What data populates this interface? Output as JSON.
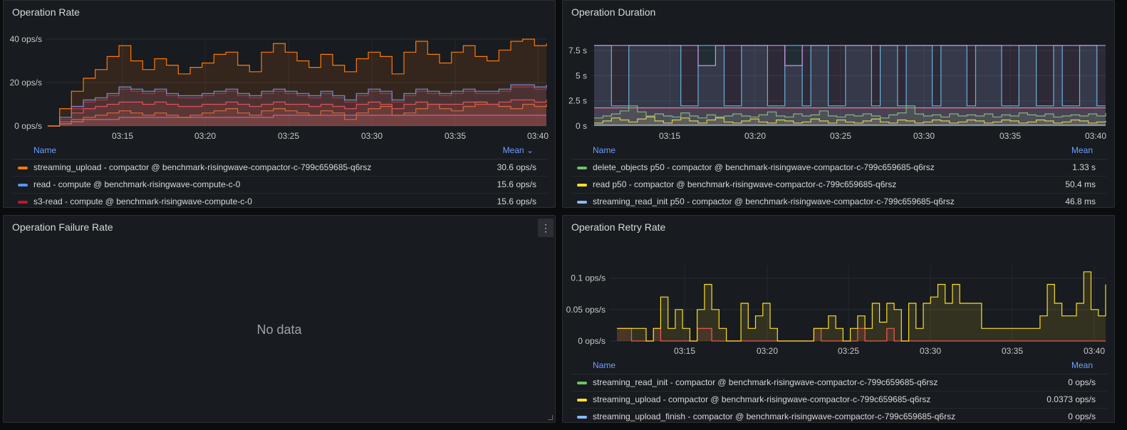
{
  "panels": {
    "rate": {
      "title": "Operation Rate",
      "legend_name_header": "Name",
      "legend_mean_header": "Mean",
      "legend_sort_icon": "chevron-down-icon",
      "legend": [
        {
          "label": "streaming_upload - compactor @ benchmark-risingwave-compactor-c-799c659685-q6rsz",
          "value": "30.6 ops/s",
          "color": "#ff780a"
        },
        {
          "label": "read - compute @ benchmark-risingwave-compute-c-0",
          "value": "15.6 ops/s",
          "color": "#5794f2"
        },
        {
          "label": "s3-read - compute @ benchmark-risingwave-compute-c-0",
          "value": "15.6 ops/s",
          "color": "#c4162a"
        }
      ]
    },
    "duration": {
      "title": "Operation Duration",
      "legend_name_header": "Name",
      "legend_mean_header": "Mean",
      "legend": [
        {
          "label": "delete_objects p50 - compactor @ benchmark-risingwave-compactor-c-799c659685-q6rsz",
          "value": "1.33 s",
          "color": "#73bf69"
        },
        {
          "label": "read p50 - compactor @ benchmark-risingwave-compactor-c-799c659685-q6rsz",
          "value": "50.4 ms",
          "color": "#fade2a"
        },
        {
          "label": "streaming_read_init p50 - compactor @ benchmark-risingwave-compactor-c-799c659685-q6rsz",
          "value": "46.8 ms",
          "color": "#8ab8ff"
        }
      ]
    },
    "failure": {
      "title": "Operation Failure Rate",
      "no_data": "No data",
      "menu_icon": "⋮"
    },
    "retry": {
      "title": "Operation Retry Rate",
      "legend_name_header": "Name",
      "legend_mean_header": "Mean",
      "legend": [
        {
          "label": "streaming_read_init - compactor @ benchmark-risingwave-compactor-c-799c659685-q6rsz",
          "value": "0 ops/s",
          "color": "#73bf69"
        },
        {
          "label": "streaming_upload - compactor @ benchmark-risingwave-compactor-c-799c659685-q6rsz",
          "value": "0.0373 ops/s",
          "color": "#fade2a"
        },
        {
          "label": "streaming_upload_finish - compactor @ benchmark-risingwave-compactor-c-799c659685-q6rsz",
          "value": "0 ops/s",
          "color": "#8ab8ff"
        }
      ]
    }
  },
  "chart_data": [
    {
      "type": "area",
      "title": "Operation Rate",
      "x_ticks": [
        "03:15",
        "03:20",
        "03:25",
        "03:30",
        "03:35",
        "03:40"
      ],
      "y_ticks": [
        "0 ops/s",
        "20 ops/s",
        "40 ops/s"
      ],
      "ylim": [
        0,
        40
      ],
      "series": [
        {
          "name": "streaming_upload - compactor @ benchmark-risingwave-compactor-c-799c659685-q6rsz",
          "color": "#ff780a",
          "values": [
            0,
            8,
            16,
            22,
            26,
            32,
            37,
            30,
            26,
            31,
            28,
            24,
            27,
            29,
            33,
            34,
            28,
            25,
            34,
            38,
            34,
            30,
            27,
            33,
            28,
            25,
            31,
            34,
            32,
            24,
            34,
            39,
            33,
            29,
            34,
            37,
            32,
            30,
            35,
            39,
            40,
            37,
            38
          ]
        },
        {
          "name": "read - compute @ benchmark-risingwave-compute-c-0",
          "color": "#5794f2",
          "values": [
            0,
            4,
            9,
            12,
            13,
            15,
            18,
            17,
            16,
            17,
            15,
            14,
            14,
            15,
            16,
            17,
            15,
            14,
            16,
            17,
            16,
            15,
            14,
            16,
            14,
            12,
            15,
            17,
            16,
            12,
            15,
            17,
            16,
            15,
            16,
            17,
            16,
            16,
            17,
            19,
            19,
            18,
            19
          ]
        },
        {
          "name": "s3-read - compute @ benchmark-risingwave-compute-c-0",
          "color": "#c4162a",
          "values": [
            0,
            3,
            8,
            11,
            12,
            14,
            17,
            16,
            15,
            16,
            14,
            13,
            13,
            14,
            15,
            16,
            14,
            13,
            15,
            16,
            15,
            14,
            13,
            15,
            13,
            11,
            14,
            16,
            15,
            11,
            14,
            16,
            15,
            14,
            15,
            16,
            15,
            15,
            16,
            18,
            18,
            17,
            18
          ]
        },
        {
          "name": "",
          "color": "#f2495c",
          "values": [
            0,
            2,
            6,
            8,
            9,
            10,
            11,
            11,
            10,
            11,
            10,
            9,
            9,
            10,
            10,
            11,
            10,
            9,
            10,
            11,
            10,
            10,
            9,
            10,
            9,
            8,
            10,
            11,
            10,
            8,
            10,
            11,
            10,
            10,
            10,
            11,
            10,
            10,
            11,
            12,
            12,
            11,
            12
          ]
        },
        {
          "name": "",
          "color": "#e0752d",
          "values": [
            0,
            1,
            3,
            4,
            5,
            6,
            7,
            6,
            5,
            6,
            5,
            4,
            5,
            6,
            7,
            8,
            6,
            5,
            7,
            8,
            7,
            6,
            5,
            7,
            6,
            3,
            6,
            8,
            9,
            5,
            6,
            8,
            10,
            8,
            7,
            9,
            11,
            10,
            9,
            8,
            10,
            9,
            10
          ]
        },
        {
          "name": "",
          "color": "#b877d9",
          "values": [
            0,
            1,
            2,
            3,
            3,
            3,
            4,
            4,
            4,
            4,
            4,
            4,
            4,
            4,
            4,
            4,
            4,
            4,
            4,
            5,
            5,
            5,
            5,
            5,
            5,
            5,
            5,
            5,
            5,
            5,
            5,
            5,
            5,
            5,
            5,
            5,
            5,
            5,
            5,
            5,
            5,
            5,
            5
          ]
        }
      ]
    },
    {
      "type": "line",
      "title": "Operation Duration",
      "x_ticks": [
        "03:15",
        "03:20",
        "03:25",
        "03:30",
        "03:35",
        "03:40"
      ],
      "y_ticks": [
        "0 s",
        "2.5 s",
        "5 s",
        "7.5 s"
      ],
      "ylim": [
        0,
        8.2
      ],
      "series": [
        {
          "name": "",
          "color": "#ca95e5",
          "values": [
            8,
            8,
            8,
            8,
            8,
            8,
            8,
            8,
            8,
            8,
            8,
            8,
            6,
            6,
            8,
            8,
            8,
            8,
            8,
            8,
            8,
            8,
            6,
            6,
            8,
            8,
            8,
            8,
            8,
            8,
            8,
            8,
            8,
            8,
            8,
            8,
            8,
            8,
            8,
            8,
            8,
            8,
            8,
            8,
            8,
            8,
            8,
            8,
            8,
            8,
            8,
            8,
            8,
            8,
            8,
            8,
            8,
            8,
            8,
            8
          ]
        },
        {
          "name": "",
          "color": "#5bb6d6",
          "values": [
            8,
            8,
            2,
            2,
            8,
            8,
            8,
            8,
            8,
            8,
            2,
            2,
            8,
            8,
            8,
            2,
            2,
            8,
            8,
            8,
            2,
            2,
            8,
            8,
            2,
            8,
            8,
            2,
            2,
            8,
            8,
            8,
            2,
            8,
            8,
            2,
            8,
            8,
            8,
            2,
            8,
            8,
            8,
            2,
            8,
            8,
            8,
            2,
            2,
            8,
            8,
            2,
            2,
            8,
            2,
            2,
            8,
            8,
            2,
            2
          ]
        },
        {
          "name": "delete_objects p50 - compactor @ benchmark-risingwave-compactor-c-799c659685-q6rsz",
          "color": "#73bf69",
          "values": [
            0.8,
            1.0,
            1.2,
            1.5,
            2.0,
            1.4,
            1.0,
            1.2,
            1.0,
            0.9,
            1.3,
            1.0,
            0.8,
            1.1,
            0.9,
            1.0,
            1.2,
            1.0,
            0.9,
            1.1,
            1.4,
            1.0,
            0.9,
            1.2,
            1.0,
            1.1,
            1.5,
            1.0,
            0.9,
            1.1,
            1.0,
            1.2,
            1.0,
            0.8,
            1.1,
            1.3,
            2.0,
            1.2,
            1.0,
            1.1,
            0.9,
            1.2,
            1.0,
            1.1,
            1.0,
            1.2,
            0.9,
            1.1,
            1.0,
            1.3,
            1.1,
            1.0,
            1.2,
            0.9,
            1.0,
            1.1,
            1.0,
            1.2,
            1.0,
            1.3
          ]
        },
        {
          "name": "read p50 - compactor @ benchmark-risingwave-compactor-c-799c659685-q6rsz",
          "color": "#fade2a",
          "values": [
            0.3,
            0.5,
            0.8,
            0.6,
            0.4,
            0.7,
            0.9,
            0.5,
            0.3,
            0.6,
            0.8,
            0.5,
            0.3,
            0.6,
            0.8,
            0.4,
            0.3,
            0.5,
            0.7,
            0.4,
            0.3,
            0.6,
            0.5,
            0.3,
            0.4,
            0.7,
            0.5,
            0.3,
            0.6,
            0.4,
            0.3,
            0.5,
            0.7,
            0.4,
            0.3,
            0.6,
            0.5,
            0.3,
            0.4,
            0.6,
            0.5,
            0.3,
            0.4,
            0.6,
            0.5,
            0.3,
            0.4,
            0.6,
            0.5,
            0.3,
            0.4,
            0.6,
            0.5,
            0.3,
            0.4,
            0.6,
            0.5,
            0.3,
            0.4,
            0.5
          ]
        },
        {
          "name": "",
          "color": "#ff7383",
          "values": [
            1.8,
            1.8,
            1.8,
            1.8,
            1.8,
            1.8,
            1.8,
            1.8,
            1.8,
            1.8,
            1.8,
            1.8,
            1.8,
            1.8,
            1.8,
            1.8,
            1.8,
            1.8,
            1.8,
            1.8,
            1.8,
            1.8,
            1.8,
            1.8,
            1.8,
            1.8,
            1.8,
            1.8,
            1.8,
            1.8,
            1.8,
            1.8,
            1.8,
            1.8,
            1.8,
            1.8,
            1.8,
            1.8,
            1.8,
            1.8,
            1.8,
            1.8,
            1.8,
            1.8,
            1.8,
            1.8,
            1.8,
            1.8,
            1.8,
            1.8,
            1.8,
            1.8,
            1.8,
            1.8,
            1.8,
            1.8,
            1.8,
            1.8,
            1.8,
            1.8
          ]
        },
        {
          "name": "streaming_read_init p50 - compactor @ benchmark-risingwave-compactor-c-799c659685-q6rsz",
          "color": "#8ab8ff",
          "values": [
            0.1,
            0.1,
            0.1,
            0.1,
            0.1,
            0.1,
            0.1,
            0.1,
            0.1,
            0.1,
            0.1,
            0.1,
            0.1,
            0.1,
            0.1,
            0.1,
            0.1,
            0.1,
            0.1,
            0.1,
            0.1,
            0.1,
            0.1,
            0.1,
            0.1,
            0.1,
            0.1,
            0.1,
            0.1,
            0.1,
            0.1,
            0.1,
            0.1,
            0.1,
            0.1,
            0.1,
            0.1,
            0.1,
            0.1,
            0.1,
            0.1,
            0.1,
            0.1,
            0.1,
            0.1,
            0.1,
            0.1,
            0.1,
            0.1,
            0.1,
            0.1,
            0.1,
            0.1,
            0.1,
            0.1,
            0.1,
            0.1,
            0.1,
            0.1,
            0.1
          ]
        }
      ]
    },
    {
      "type": "area",
      "title": "Operation Retry Rate",
      "x_ticks": [
        "03:15",
        "03:20",
        "03:25",
        "03:30",
        "03:35",
        "03:40"
      ],
      "y_ticks": [
        "0 ops/s",
        "0.05 ops/s",
        "0.1 ops/s"
      ],
      "ylim": [
        0,
        0.12
      ],
      "series": [
        {
          "name": "streaming_upload - compactor @ benchmark-risingwave-compactor-c-799c659685-q6rsz",
          "color": "#fade2a",
          "values": [
            0.02,
            0.02,
            0.02,
            0.02,
            0.0,
            0.02,
            0.07,
            0.02,
            0.05,
            0.02,
            0.0,
            0.05,
            0.09,
            0.05,
            0.02,
            0.0,
            0.0,
            0.06,
            0.02,
            0.04,
            0.06,
            0.02,
            0.0,
            0.0,
            0.0,
            0.0,
            0.0,
            0.02,
            0.02,
            0.04,
            0.02,
            0.0,
            0.02,
            0.04,
            0.02,
            0.06,
            0.03,
            0.06,
            0.05,
            0.0,
            0.06,
            0.02,
            0.06,
            0.07,
            0.09,
            0.06,
            0.09,
            0.06,
            0.06,
            0.06,
            0.02,
            0.02,
            0.02,
            0.02,
            0.02,
            0.02,
            0.02,
            0.02,
            0.04,
            0.09,
            0.06,
            0.04,
            0.04,
            0.06,
            0.11,
            0.05,
            0.04,
            0.09
          ]
        },
        {
          "name": "",
          "color": "#f2495c",
          "values": [
            0.02,
            0.02,
            0.0,
            0.0,
            0.0,
            0.02,
            0.0,
            0.0,
            0.0,
            0.0,
            0.0,
            0.02,
            0.02,
            0.0,
            0.0,
            0.0,
            0.0,
            0.0,
            0.0,
            0.0,
            0.0,
            0.0,
            0.0,
            0.0,
            0.0,
            0.0,
            0.0,
            0.02,
            0.0,
            0.0,
            0.0,
            0.0,
            0.0,
            0.02,
            0.0,
            0.0,
            0.0,
            0.02,
            0.0,
            0.0,
            0.0,
            0.0,
            0.0,
            0.0,
            0.0,
            0.0,
            0.0,
            0.0,
            0.0,
            0.0,
            0.0,
            0.0,
            0.0,
            0.0,
            0.0,
            0.0,
            0.0,
            0.0,
            0.0,
            0.0,
            0.0,
            0.0,
            0.0,
            0.0,
            0.0,
            0.0,
            0.0,
            0.0
          ]
        }
      ]
    }
  ]
}
